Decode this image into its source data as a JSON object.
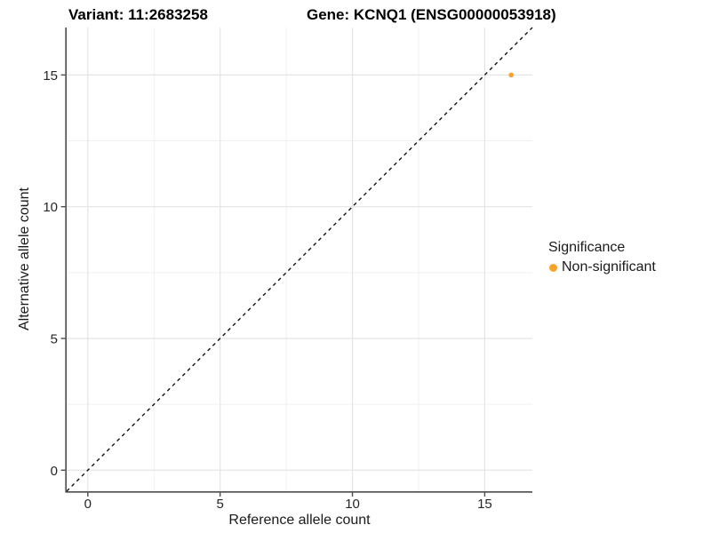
{
  "titles": {
    "variant": "Variant: 11:2683258",
    "gene": "Gene: KCNQ1 (ENSG00000053918)"
  },
  "chart_data": {
    "type": "scatter",
    "xlabel": "Reference allele count",
    "ylabel": "Alternative allele count",
    "xlim": [
      -0.8,
      16.8
    ],
    "ylim": [
      -0.8,
      16.8
    ],
    "xticks": [
      0,
      5,
      10,
      15
    ],
    "yticks": [
      0,
      5,
      10,
      15
    ],
    "xticks_minor": [
      2.5,
      7.5,
      12.5
    ],
    "yticks_minor": [
      2.5,
      7.5,
      12.5
    ],
    "grid": true,
    "identity_line": {
      "style": "dashed",
      "from": [
        -0.8,
        -0.8
      ],
      "to": [
        16.8,
        16.8
      ],
      "color": "#111111"
    },
    "series": [
      {
        "name": "Non-significant",
        "color": "#FAA32B",
        "points": [
          [
            16,
            15
          ]
        ]
      }
    ],
    "legend": {
      "title": "Significance",
      "position": "right",
      "items": [
        {
          "label": "Non-significant",
          "color": "#FAA32B"
        }
      ]
    }
  },
  "colors": {
    "axis_line": "#4d4d4d",
    "tick": "#4d4d4d",
    "tick_label": "#262626",
    "grid_major": "#e4e4e4",
    "grid_minor": "#f0f0f0",
    "background": "#ffffff"
  }
}
